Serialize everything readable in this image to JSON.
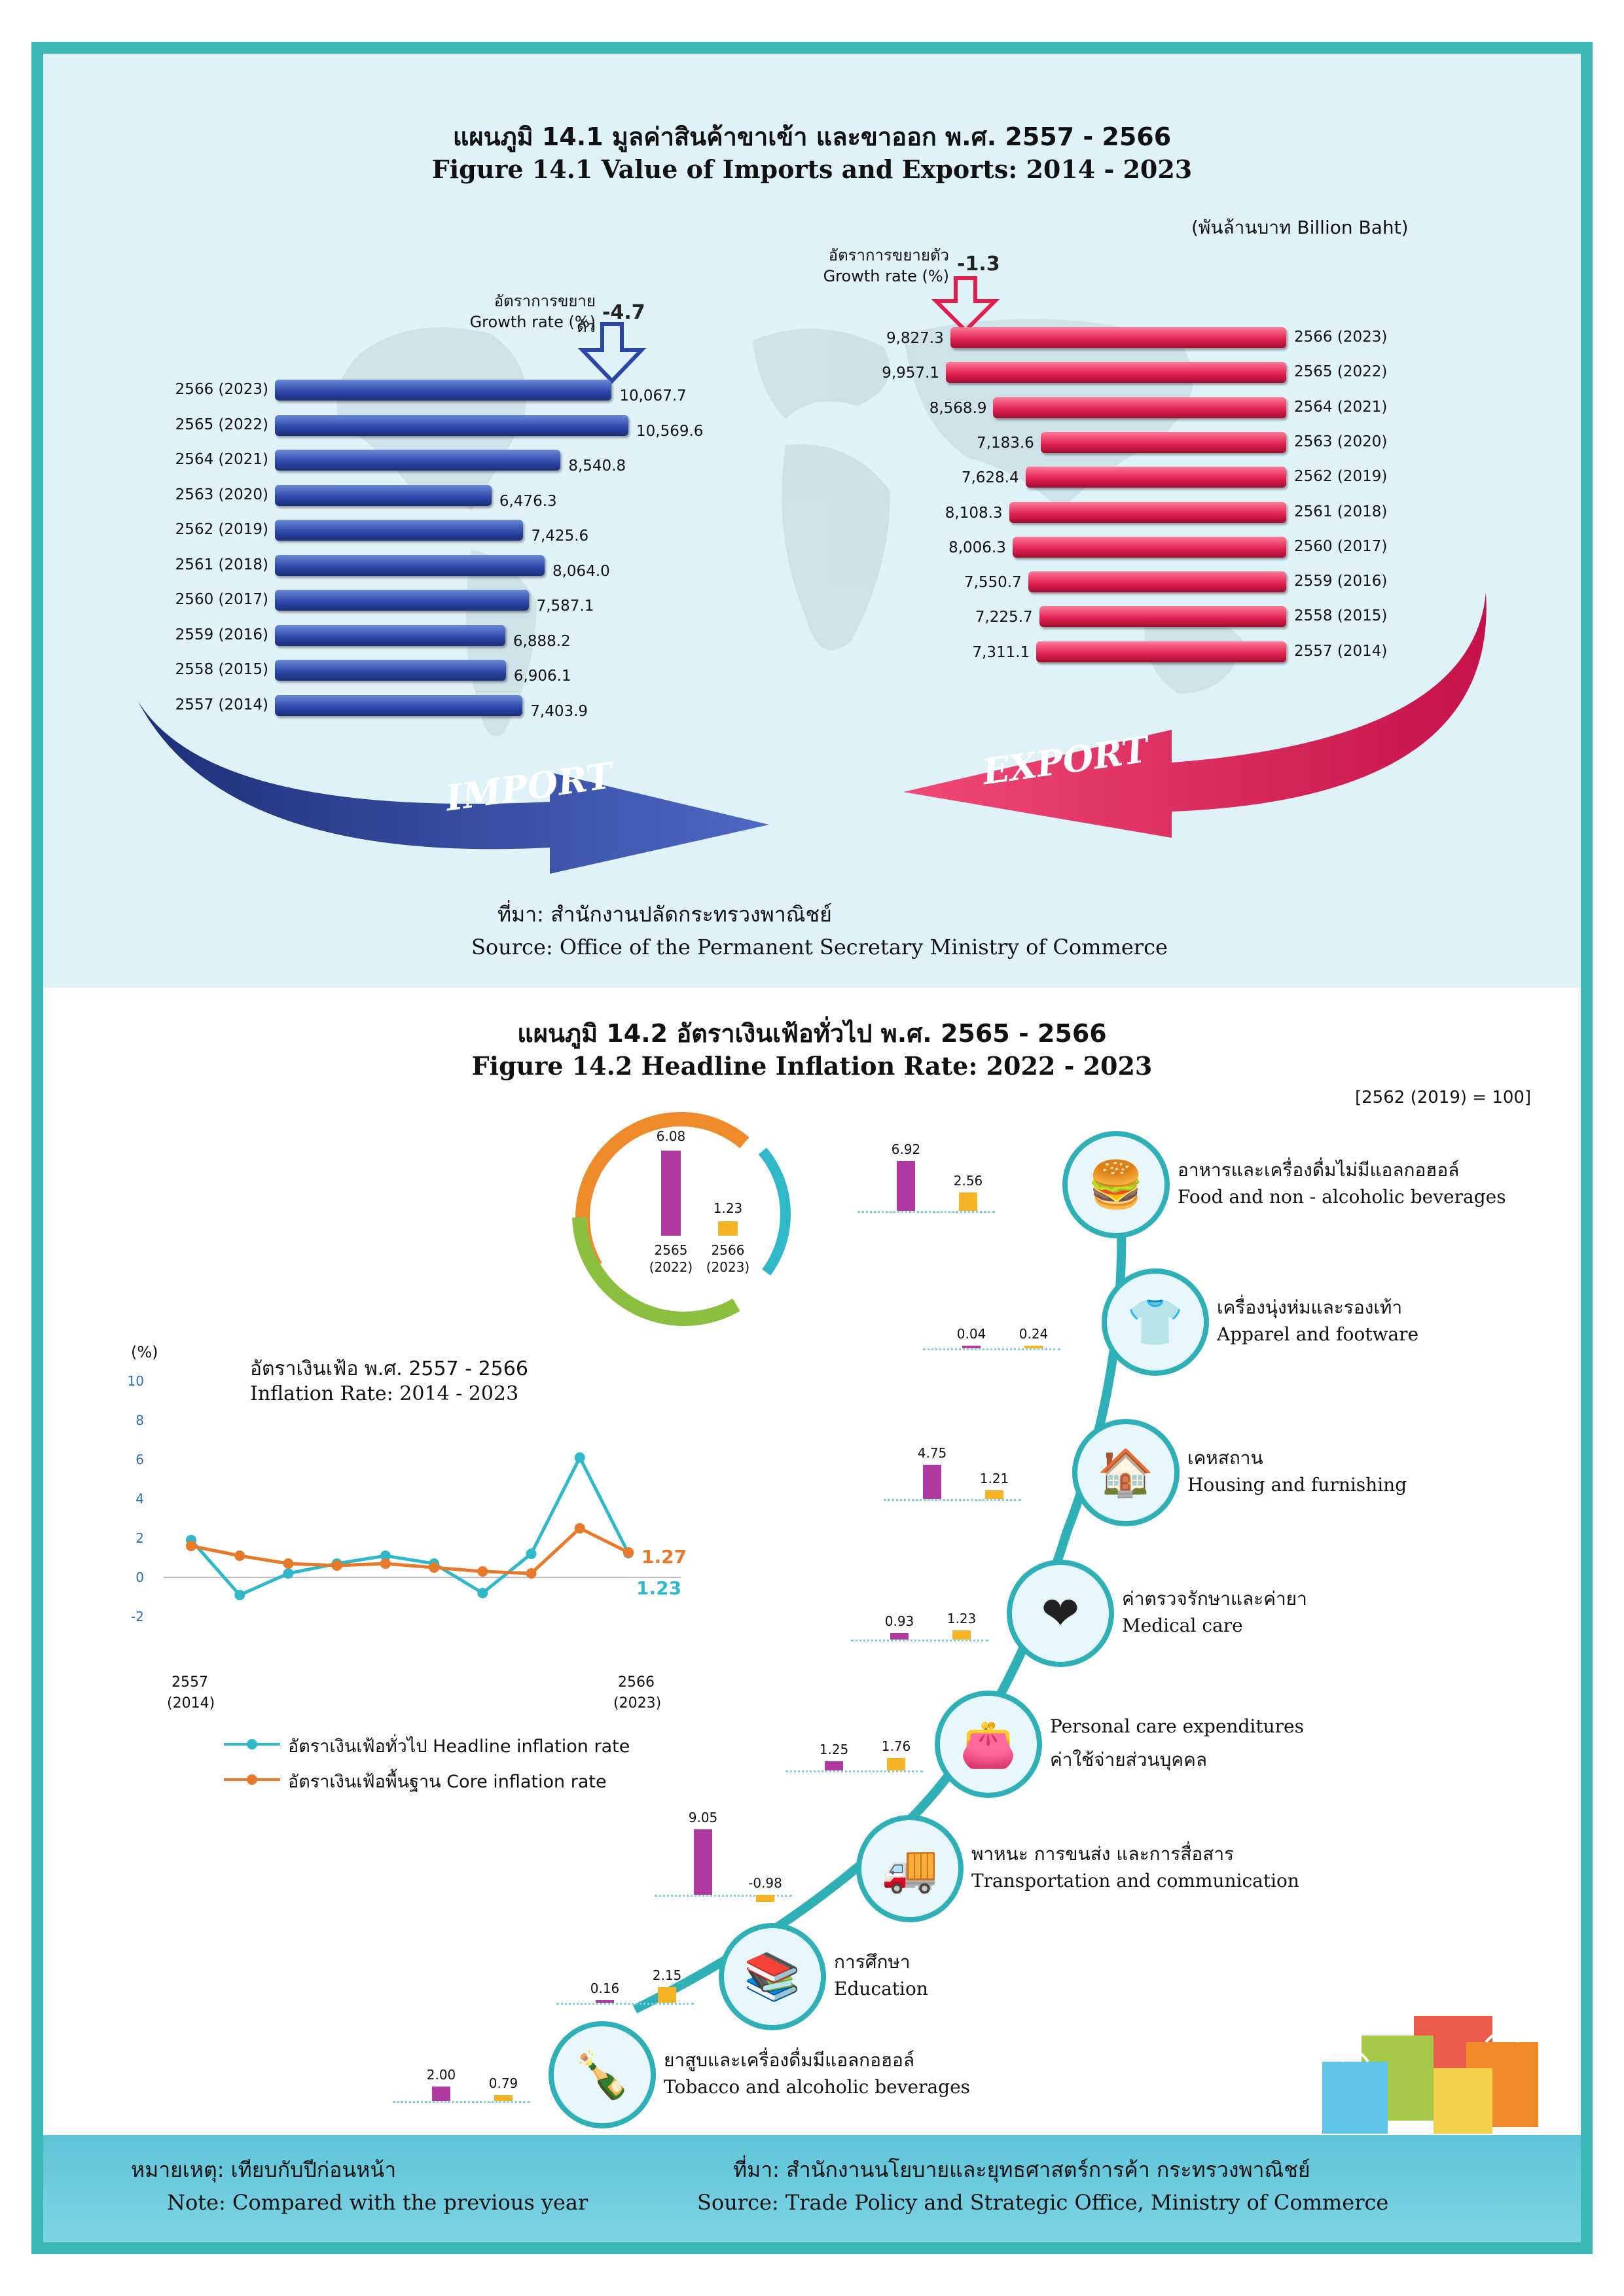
{
  "fig1": {
    "title_th": "แผนภูมิ 14.1 มูลค่าสินค้าขาเข้า และขาออก พ.ศ. 2557 - 2566",
    "title_en": "Figure  14.1 Value of Imports and Exports: 2014 - 2023",
    "unit": "(พันล้านบาท  Billion Baht)",
    "import_growth_th": "อัตราการขยายตัว",
    "import_growth_en": "Growth rate (%)",
    "import_growth_value": "-4.7",
    "export_growth_th": "อัตราการขยายตัว",
    "export_growth_en": "Growth rate (%)",
    "export_growth_value": "-1.3",
    "import_arrow_label": "IMPORT",
    "export_arrow_label": "EXPORT",
    "source_th": "ที่มา: สำนักงานปลัดกระทรวงพาณิชย์",
    "source_en": "Source: Office of the Permanent Secretary Ministry of Commerce",
    "colors": {
      "import": "#2b46a8",
      "export": "#e01f4f"
    }
  },
  "fig2": {
    "title_th": "แผนภูมิ 14.2 อัตราเงินเฟ้อทั่วไป พ.ศ. 2565 - 2566",
    "title_en": "Figure  14.2 Headline Inflation Rate: 2022 - 2023",
    "base": "[2562 (2019) = 100]",
    "summary": {
      "v2022": "6.08",
      "v2023": "1.23",
      "lbl2022_a": "2565",
      "lbl2022_b": "(2022)",
      "lbl2023_a": "2566",
      "lbl2023_b": "(2023)"
    },
    "line_title_th": "อัตราเงินเฟ้อ พ.ศ. 2557 - 2566",
    "line_title_en": "Inflation Rate: 2014 - 2023",
    "y_unit": "(%)",
    "x_start_a": "2557",
    "x_start_b": "(2014)",
    "x_end_a": "2566",
    "x_end_b": "(2023)",
    "end_core": "1.27",
    "end_headline": "1.23",
    "legend_headline": "อัตราเงินเฟ้อทั่วไป Headline inflation rate",
    "legend_core": "อัตราเงินเฟ้อพื้นฐาน Core inflation rate",
    "colors": {
      "headline": "#2fb8c8",
      "core": "#e8782a",
      "y2022": "#b03aa0",
      "y2023": "#f5b324"
    },
    "categories": [
      {
        "th": "อาหารและเครื่องดื่มไม่มีแอลกอฮอล์",
        "en": "Food and non - alcoholic beverages",
        "v2022": "6.92",
        "v2023": "2.56",
        "icon": "food-icon",
        "glyph": "🍔"
      },
      {
        "th": "เครื่องนุ่งห่มและรองเท้า",
        "en": "Apparel and footware",
        "v2022": "0.04",
        "v2023": "0.24",
        "icon": "apparel-icon",
        "glyph": "👕"
      },
      {
        "th": "เคหสถาน",
        "en": "Housing and furnishing",
        "v2022": "4.75",
        "v2023": "1.21",
        "icon": "house-icon",
        "glyph": "🏠"
      },
      {
        "th": "ค่าตรวจรักษาและค่ายา",
        "en": "Medical care",
        "v2022": "0.93",
        "v2023": "1.23",
        "icon": "medical-icon",
        "glyph": "❤"
      },
      {
        "th": "ค่าใช้จ่ายส่วนบุคคล",
        "en": "Personal care expenditures",
        "v2022": "1.25",
        "v2023": "1.76",
        "icon": "wallet-icon",
        "glyph": "👛"
      },
      {
        "th": "พาหนะ การขนส่ง และการสื่อสาร",
        "en": "Transportation and communication",
        "v2022": "9.05",
        "v2023": "-0.98",
        "icon": "transport-icon",
        "glyph": "🚚"
      },
      {
        "th": "การศึกษา",
        "en": "Education",
        "v2022": "0.16",
        "v2023": "2.15",
        "icon": "books-icon",
        "glyph": "📚"
      },
      {
        "th": "ยาสูบและเครื่องดื่มมีแอลกอฮอล์",
        "en": "Tobacco and alcoholic beverages",
        "v2022": "2.00",
        "v2023": "0.79",
        "icon": "bottles-icon",
        "glyph": "🍾"
      }
    ]
  },
  "footer": {
    "note_th": "หมายเหตุ: เทียบกับปีก่อนหน้า",
    "note_en": "Note: Compared with the previous year",
    "source_th": "ที่มา: สำนักงานนโยบายและยุทธศาสตร์การค้า กระทรวงพาณิชย์",
    "source_en": "Source: Trade Policy and Strategic Office, Ministry of Commerce"
  },
  "chart_data": [
    {
      "type": "bar",
      "title": "Value of Imports (Billion Baht)",
      "categories": [
        "2566 (2023)",
        "2565 (2022)",
        "2564 (2021)",
        "2563 (2020)",
        "2562 (2019)",
        "2561 (2018)",
        "2560 (2017)",
        "2559 (2016)",
        "2558 (2015)",
        "2557 (2014)"
      ],
      "values": [
        10067.7,
        10569.6,
        8540.8,
        6476.3,
        7425.6,
        8064.0,
        7587.1,
        6888.2,
        6906.1,
        7403.9
      ],
      "value_labels": [
        "10,067.7",
        "10,569.6",
        "8,540.8",
        "6,476.3",
        "7,425.6",
        "8,064.0",
        "7,587.1",
        "6,888.2",
        "6,906.1",
        "7,403.9"
      ],
      "orientation": "horizontal"
    },
    {
      "type": "bar",
      "title": "Value of Exports (Billion Baht)",
      "categories": [
        "2566 (2023)",
        "2565 (2022)",
        "2564 (2021)",
        "2563 (2020)",
        "2562 (2019)",
        "2561 (2018)",
        "2560 (2017)",
        "2559 (2016)",
        "2558 (2015)",
        "2557 (2014)"
      ],
      "values": [
        9827.3,
        9957.1,
        8568.9,
        7183.6,
        7628.4,
        8108.3,
        8006.3,
        7550.7,
        7225.7,
        7311.1
      ],
      "value_labels": [
        "9,827.3",
        "9,957.1",
        "8,568.9",
        "7,183.6",
        "7,628.4",
        "8,108.3",
        "8,006.3",
        "7,550.7",
        "7,225.7",
        "7,311.1"
      ],
      "orientation": "horizontal"
    },
    {
      "type": "line",
      "title": "Inflation Rate: 2014 - 2023",
      "x": [
        2014,
        2015,
        2016,
        2017,
        2018,
        2019,
        2020,
        2021,
        2022,
        2023
      ],
      "series": [
        {
          "name": "Headline inflation rate",
          "values": [
            1.9,
            -0.9,
            0.2,
            0.7,
            1.1,
            0.7,
            -0.8,
            1.2,
            6.1,
            1.23
          ]
        },
        {
          "name": "Core inflation rate",
          "values": [
            1.6,
            1.1,
            0.7,
            0.6,
            0.7,
            0.5,
            0.3,
            0.2,
            2.5,
            1.27
          ]
        }
      ],
      "ylim": [
        -2,
        10
      ],
      "yticks": [
        "10",
        "8",
        "6",
        "4",
        "2",
        "0",
        "-2"
      ]
    },
    {
      "type": "bar",
      "title": "Headline Inflation Rate by category: 2022 - 2023",
      "categories": [
        "Food and non - alcoholic beverages",
        "Apparel and footware",
        "Housing and furnishing",
        "Medical care",
        "Personal care expenditures",
        "Transportation and communication",
        "Education",
        "Tobacco and alcoholic beverages"
      ],
      "series": [
        {
          "name": "2565 (2022)",
          "values": [
            6.92,
            0.04,
            4.75,
            0.93,
            1.25,
            9.05,
            0.16,
            2.0
          ]
        },
        {
          "name": "2566 (2023)",
          "values": [
            2.56,
            0.24,
            1.21,
            1.23,
            1.76,
            -0.98,
            2.15,
            0.79
          ]
        }
      ]
    }
  ]
}
